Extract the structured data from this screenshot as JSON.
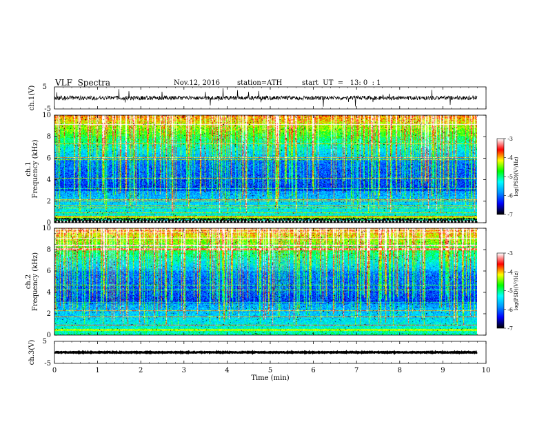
{
  "header": {
    "title": "VLF  Spectra",
    "date": "Nov.12, 2016",
    "station": "station=ATH",
    "start": "start  UT  =   13: 0  : 1"
  },
  "chart_data": [
    {
      "type": "line",
      "name": "ch1-waveform",
      "ylabel": "ch.1(V)",
      "ylim": [
        -5,
        5
      ],
      "ytick_labels": [
        "5",
        "-5"
      ],
      "xlim": [
        0,
        10
      ],
      "series_color": "#000000",
      "data_extent_min": 9.8
    },
    {
      "type": "heatmap",
      "name": "ch1-spectrogram",
      "ylabel": "ch.1\nFrequency (kHz)",
      "ylim": [
        0,
        10
      ],
      "yticks": [
        0,
        2,
        4,
        6,
        8,
        10
      ],
      "ytick_labels": [
        "0",
        "2",
        "4",
        "6",
        "8",
        "10"
      ],
      "xlim": [
        0,
        10
      ],
      "colorbar": {
        "label": "log(PSD)(V²/Hz)",
        "range": [
          -7,
          -3
        ],
        "ticks": [
          "-3",
          "-4",
          "-5",
          "-6",
          "-7"
        ]
      }
    },
    {
      "type": "heatmap",
      "name": "ch2-spectrogram",
      "ylabel": "ch.2\nFrequency (kHz)",
      "ylim": [
        0,
        10
      ],
      "yticks": [
        0,
        2,
        4,
        6,
        8,
        10
      ],
      "ytick_labels": [
        "0",
        "2",
        "4",
        "6",
        "8",
        "10"
      ],
      "xlim": [
        0,
        10
      ],
      "colorbar": {
        "label": "log(PSD)(V²/Hz)",
        "range": [
          -7,
          -3
        ],
        "ticks": [
          "-3",
          "-4",
          "-5",
          "-6",
          "-7"
        ]
      }
    },
    {
      "type": "line",
      "name": "ch3-waveform",
      "ylabel": "ch.3(V)",
      "ylim": [
        -5,
        5
      ],
      "ytick_labels": [
        "5",
        "-5"
      ],
      "xlim": [
        0,
        10
      ],
      "xlabel": "Time  (min)",
      "xticks": [
        0,
        1,
        2,
        3,
        4,
        5,
        6,
        7,
        8,
        9,
        10
      ],
      "xtick_labels": [
        "0",
        "1",
        "2",
        "3",
        "4",
        "5",
        "6",
        "7",
        "8",
        "9",
        "10"
      ],
      "series_color": "#000000"
    }
  ],
  "colors": {
    "colormap": [
      "#000000",
      "#0000ff",
      "#0096ff",
      "#00ffff",
      "#00ff00",
      "#ffff00",
      "#ff0000",
      "#ffffff"
    ]
  }
}
